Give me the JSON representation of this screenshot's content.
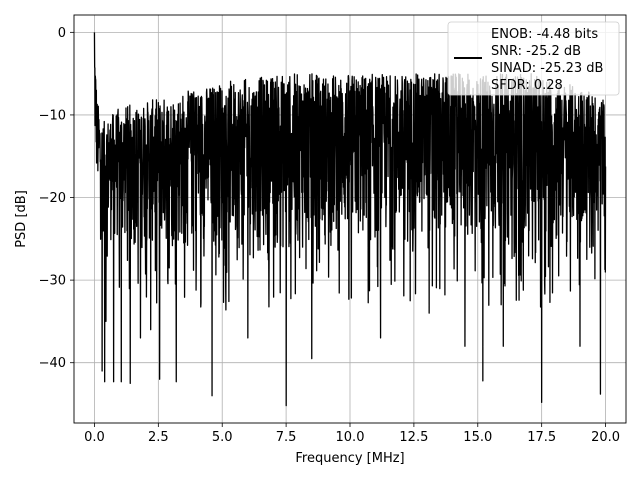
{
  "chart_data": {
    "type": "line",
    "xlabel": "Frequency [MHz]",
    "ylabel": "PSD [dB]",
    "xlim": [
      -0.8,
      20.8
    ],
    "ylim": [
      -47.3,
      2.1
    ],
    "xticks": [
      0.0,
      2.5,
      5.0,
      7.5,
      10.0,
      12.5,
      15.0,
      17.5,
      20.0
    ],
    "xtick_labels": [
      "0.0",
      "2.5",
      "5.0",
      "7.5",
      "10.0",
      "12.5",
      "15.0",
      "17.5",
      "20.0"
    ],
    "yticks": [
      0,
      -10,
      -20,
      -30,
      -40
    ],
    "ytick_labels": [
      "0",
      "−10",
      "−20",
      "−30",
      "−40"
    ],
    "grid": true,
    "legend": {
      "placement": "top-right",
      "entries": [
        "ENOB: -4.48 bits",
        "SNR: -25.2 dB",
        "SINAD: -25.23 dB",
        "SFDR: 0.28"
      ]
    },
    "series": [
      {
        "color": "#000000",
        "band_upper": [
          [
            0.0,
            0.0
          ],
          [
            0.1,
            -8
          ],
          [
            0.3,
            -11
          ],
          [
            1.0,
            -9
          ],
          [
            2.5,
            -8
          ],
          [
            5.0,
            -6
          ],
          [
            7.5,
            -5
          ],
          [
            10.0,
            -5
          ],
          [
            12.5,
            -5
          ],
          [
            15.0,
            -5
          ],
          [
            17.5,
            -5
          ],
          [
            20.0,
            -8
          ]
        ],
        "band_lower": [
          [
            0.0,
            -15
          ],
          [
            0.1,
            -20
          ],
          [
            0.3,
            -25
          ],
          [
            1.0,
            -27
          ],
          [
            2.5,
            -27
          ],
          [
            5.0,
            -28
          ],
          [
            7.5,
            -28
          ],
          [
            10.0,
            -27
          ],
          [
            12.5,
            -27
          ],
          [
            15.0,
            -27
          ],
          [
            17.5,
            -29
          ],
          [
            20.0,
            -23
          ]
        ],
        "dips": [
          [
            0.3,
            -41
          ],
          [
            0.4,
            -42.3
          ],
          [
            0.45,
            -35
          ],
          [
            0.75,
            -42.3
          ],
          [
            1.05,
            -42.3
          ],
          [
            1.4,
            -42.5
          ],
          [
            1.8,
            -37
          ],
          [
            2.2,
            -36
          ],
          [
            2.55,
            -42
          ],
          [
            3.2,
            -42.3
          ],
          [
            4.6,
            -44
          ],
          [
            6.0,
            -37
          ],
          [
            7.5,
            -45.2
          ],
          [
            8.5,
            -39.5
          ],
          [
            11.2,
            -37
          ],
          [
            13.1,
            -34
          ],
          [
            14.5,
            -38
          ],
          [
            15.2,
            -42.2
          ],
          [
            16.0,
            -38
          ],
          [
            17.5,
            -44.8
          ],
          [
            19.0,
            -38
          ],
          [
            19.8,
            -43.8
          ]
        ]
      }
    ]
  }
}
